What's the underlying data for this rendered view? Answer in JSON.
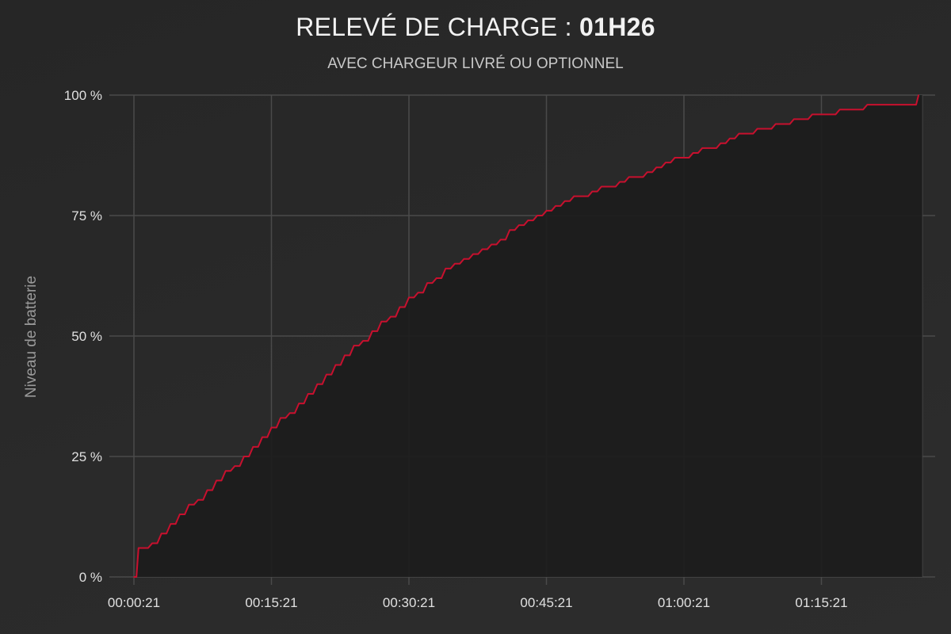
{
  "header": {
    "title_prefix": "RELEVÉ DE CHARGE : ",
    "title_value": "01H26",
    "subtitle": "AVEC CHARGEUR LIVRÉ OU OPTIONNEL"
  },
  "chart_data": {
    "type": "line",
    "title": "RELEVÉ DE CHARGE : 01H26",
    "subtitle": "AVEC CHARGEUR LIVRÉ OU OPTIONNEL",
    "xlabel": "",
    "ylabel": "Niveau de batterie",
    "x_unit": "minutes elapsed",
    "xlim": [
      0,
      86
    ],
    "ylim": [
      0,
      100
    ],
    "x_ticks": [
      {
        "value": 0,
        "label": "00:00:21"
      },
      {
        "value": 15,
        "label": "00:15:21"
      },
      {
        "value": 30,
        "label": "00:30:21"
      },
      {
        "value": 45,
        "label": "00:45:21"
      },
      {
        "value": 60,
        "label": "01:00:21"
      },
      {
        "value": 75,
        "label": "01:15:21"
      }
    ],
    "y_ticks": [
      {
        "value": 0,
        "label": "0 %"
      },
      {
        "value": 25,
        "label": "25 %"
      },
      {
        "value": 50,
        "label": "50 %"
      },
      {
        "value": 75,
        "label": "75 %"
      },
      {
        "value": 100,
        "label": "100 %"
      }
    ],
    "grid": true,
    "series": [
      {
        "color": "#c8102e",
        "x": [
          0,
          0.5,
          1,
          2,
          3,
          4,
          5,
          6,
          7,
          8,
          9,
          10,
          11,
          12,
          13,
          14,
          15,
          16,
          17,
          18,
          19,
          20,
          21,
          22,
          23,
          24,
          25,
          26,
          27,
          28,
          29,
          30,
          31,
          32,
          33,
          34,
          35,
          36,
          37,
          38,
          39,
          40,
          41,
          42,
          43,
          44,
          45,
          46,
          47,
          48,
          49,
          50,
          51,
          52,
          53,
          54,
          55,
          56,
          57,
          58,
          59,
          60,
          61,
          62,
          63,
          64,
          65,
          66,
          67,
          68,
          69,
          70,
          71,
          72,
          73,
          74,
          75,
          76,
          77,
          78,
          79,
          80,
          81,
          82,
          83,
          84,
          85,
          85.6
        ],
        "y": [
          0,
          6,
          6,
          7,
          9,
          11,
          13,
          15,
          16,
          18,
          20,
          22,
          23,
          25,
          27,
          29,
          31,
          33,
          34,
          36,
          38,
          40,
          42,
          44,
          46,
          48,
          49,
          51,
          53,
          54,
          56,
          58,
          59,
          61,
          62,
          64,
          65,
          66,
          67,
          68,
          69,
          70,
          72,
          73,
          74,
          75,
          76,
          77,
          78,
          79,
          79,
          80,
          81,
          81,
          82,
          83,
          83,
          84,
          85,
          86,
          87,
          87,
          88,
          89,
          89,
          90,
          91,
          92,
          92,
          93,
          93,
          94,
          94,
          95,
          95,
          96,
          96,
          96,
          97,
          97,
          97,
          98,
          98,
          98,
          98,
          98,
          98,
          100
        ]
      }
    ]
  }
}
